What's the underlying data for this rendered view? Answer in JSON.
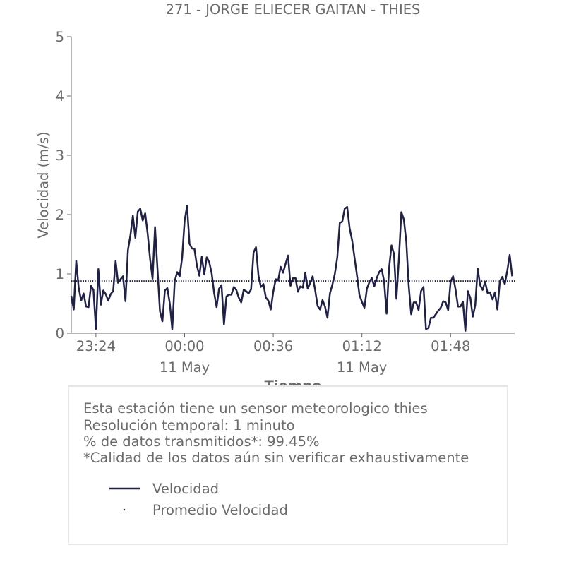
{
  "chart_data": {
    "type": "line",
    "title": "271 - JORGE ELIECER GAITAN - THIES",
    "xlabel": "Tiempo",
    "ylabel": "Velocidad (m/s)",
    "ylim": [
      0,
      5
    ],
    "yticks": [
      "0",
      "1",
      "2",
      "3",
      "4",
      "5"
    ],
    "xlim": [
      "2024-05-10T23:14",
      "2024-05-11T02:14"
    ],
    "xticks": [
      {
        "at": "2024-05-10T23:24",
        "label": "23:24",
        "sublabel": ""
      },
      {
        "at": "2024-05-11T00:00",
        "label": "00:00",
        "sublabel": "11 May"
      },
      {
        "at": "2024-05-11T00:36",
        "label": "00:36",
        "sublabel": ""
      },
      {
        "at": "2024-05-11T01:12",
        "label": "01:12",
        "sublabel": "11 May"
      },
      {
        "at": "2024-05-11T01:48",
        "label": "01:48",
        "sublabel": ""
      }
    ],
    "grid": false,
    "series": [
      {
        "name": "Velocidad",
        "color": "#1f2147",
        "style": "solid",
        "x_start": "2024-05-10T23:14",
        "x_step_minutes": 1,
        "values": [
          0.63,
          0.4,
          1.22,
          0.77,
          0.55,
          0.67,
          0.45,
          0.44,
          0.8,
          0.73,
          0.07,
          1.08,
          0.48,
          0.72,
          0.66,
          0.55,
          0.66,
          0.71,
          1.22,
          0.85,
          0.91,
          0.96,
          0.54,
          1.4,
          1.65,
          1.98,
          1.61,
          2.05,
          2.1,
          1.9,
          2.02,
          1.68,
          1.25,
          0.92,
          1.79,
          1.08,
          0.37,
          0.2,
          0.72,
          0.76,
          0.5,
          0.07,
          0.88,
          1.03,
          0.96,
          1.27,
          1.89,
          2.15,
          1.51,
          1.43,
          1.42,
          1.14,
          0.97,
          1.29,
          0.99,
          1.28,
          1.2,
          1.01,
          0.68,
          0.44,
          0.75,
          0.81,
          0.15,
          0.62,
          0.65,
          0.65,
          0.78,
          0.73,
          0.6,
          0.52,
          0.73,
          0.71,
          0.67,
          0.74,
          1.36,
          1.45,
          0.97,
          0.78,
          0.83,
          0.6,
          0.55,
          0.4,
          0.7,
          0.91,
          0.89,
          1.12,
          1.02,
          1.17,
          1.31,
          0.8,
          0.93,
          0.93,
          0.7,
          0.79,
          0.77,
          1.02,
          0.75,
          0.85,
          0.96,
          0.73,
          0.46,
          0.4,
          0.56,
          0.45,
          0.26,
          0.67,
          0.82,
          1.0,
          1.28,
          1.86,
          1.88,
          2.1,
          2.13,
          1.77,
          1.57,
          1.27,
          0.97,
          0.64,
          0.53,
          0.43,
          0.75,
          0.86,
          0.93,
          0.79,
          0.93,
          1.03,
          1.08,
          0.88,
          0.33,
          1.09,
          1.48,
          1.34,
          0.58,
          1.25,
          2.04,
          1.92,
          1.55,
          0.8,
          0.32,
          0.52,
          0.52,
          0.39,
          0.71,
          0.78,
          0.07,
          0.09,
          0.26,
          0.26,
          0.32,
          0.38,
          0.43,
          0.54,
          0.52,
          0.39,
          0.87,
          0.96,
          0.74,
          0.45,
          0.45,
          0.53,
          0.04,
          0.71,
          0.6,
          0.28,
          0.47,
          1.09,
          0.81,
          0.73,
          0.87,
          0.68,
          0.69,
          0.57,
          0.69,
          0.4,
          0.88,
          0.95,
          0.83,
          1.05,
          1.32,
          0.96
        ]
      },
      {
        "name": "Promedio Velocidad",
        "color": "#1f2147",
        "style": "dotted",
        "constant": 0.88
      }
    ]
  },
  "info": {
    "lines": [
      "Esta estación tiene un sensor meteorologico thies",
      "Resolución temporal: 1 minuto",
      "% de datos transmitidos*: 99.45%",
      "*Calidad de los datos aún sin verificar exhaustivamente"
    ]
  },
  "legend": {
    "items": [
      "Velocidad",
      "Promedio Velocidad"
    ]
  }
}
